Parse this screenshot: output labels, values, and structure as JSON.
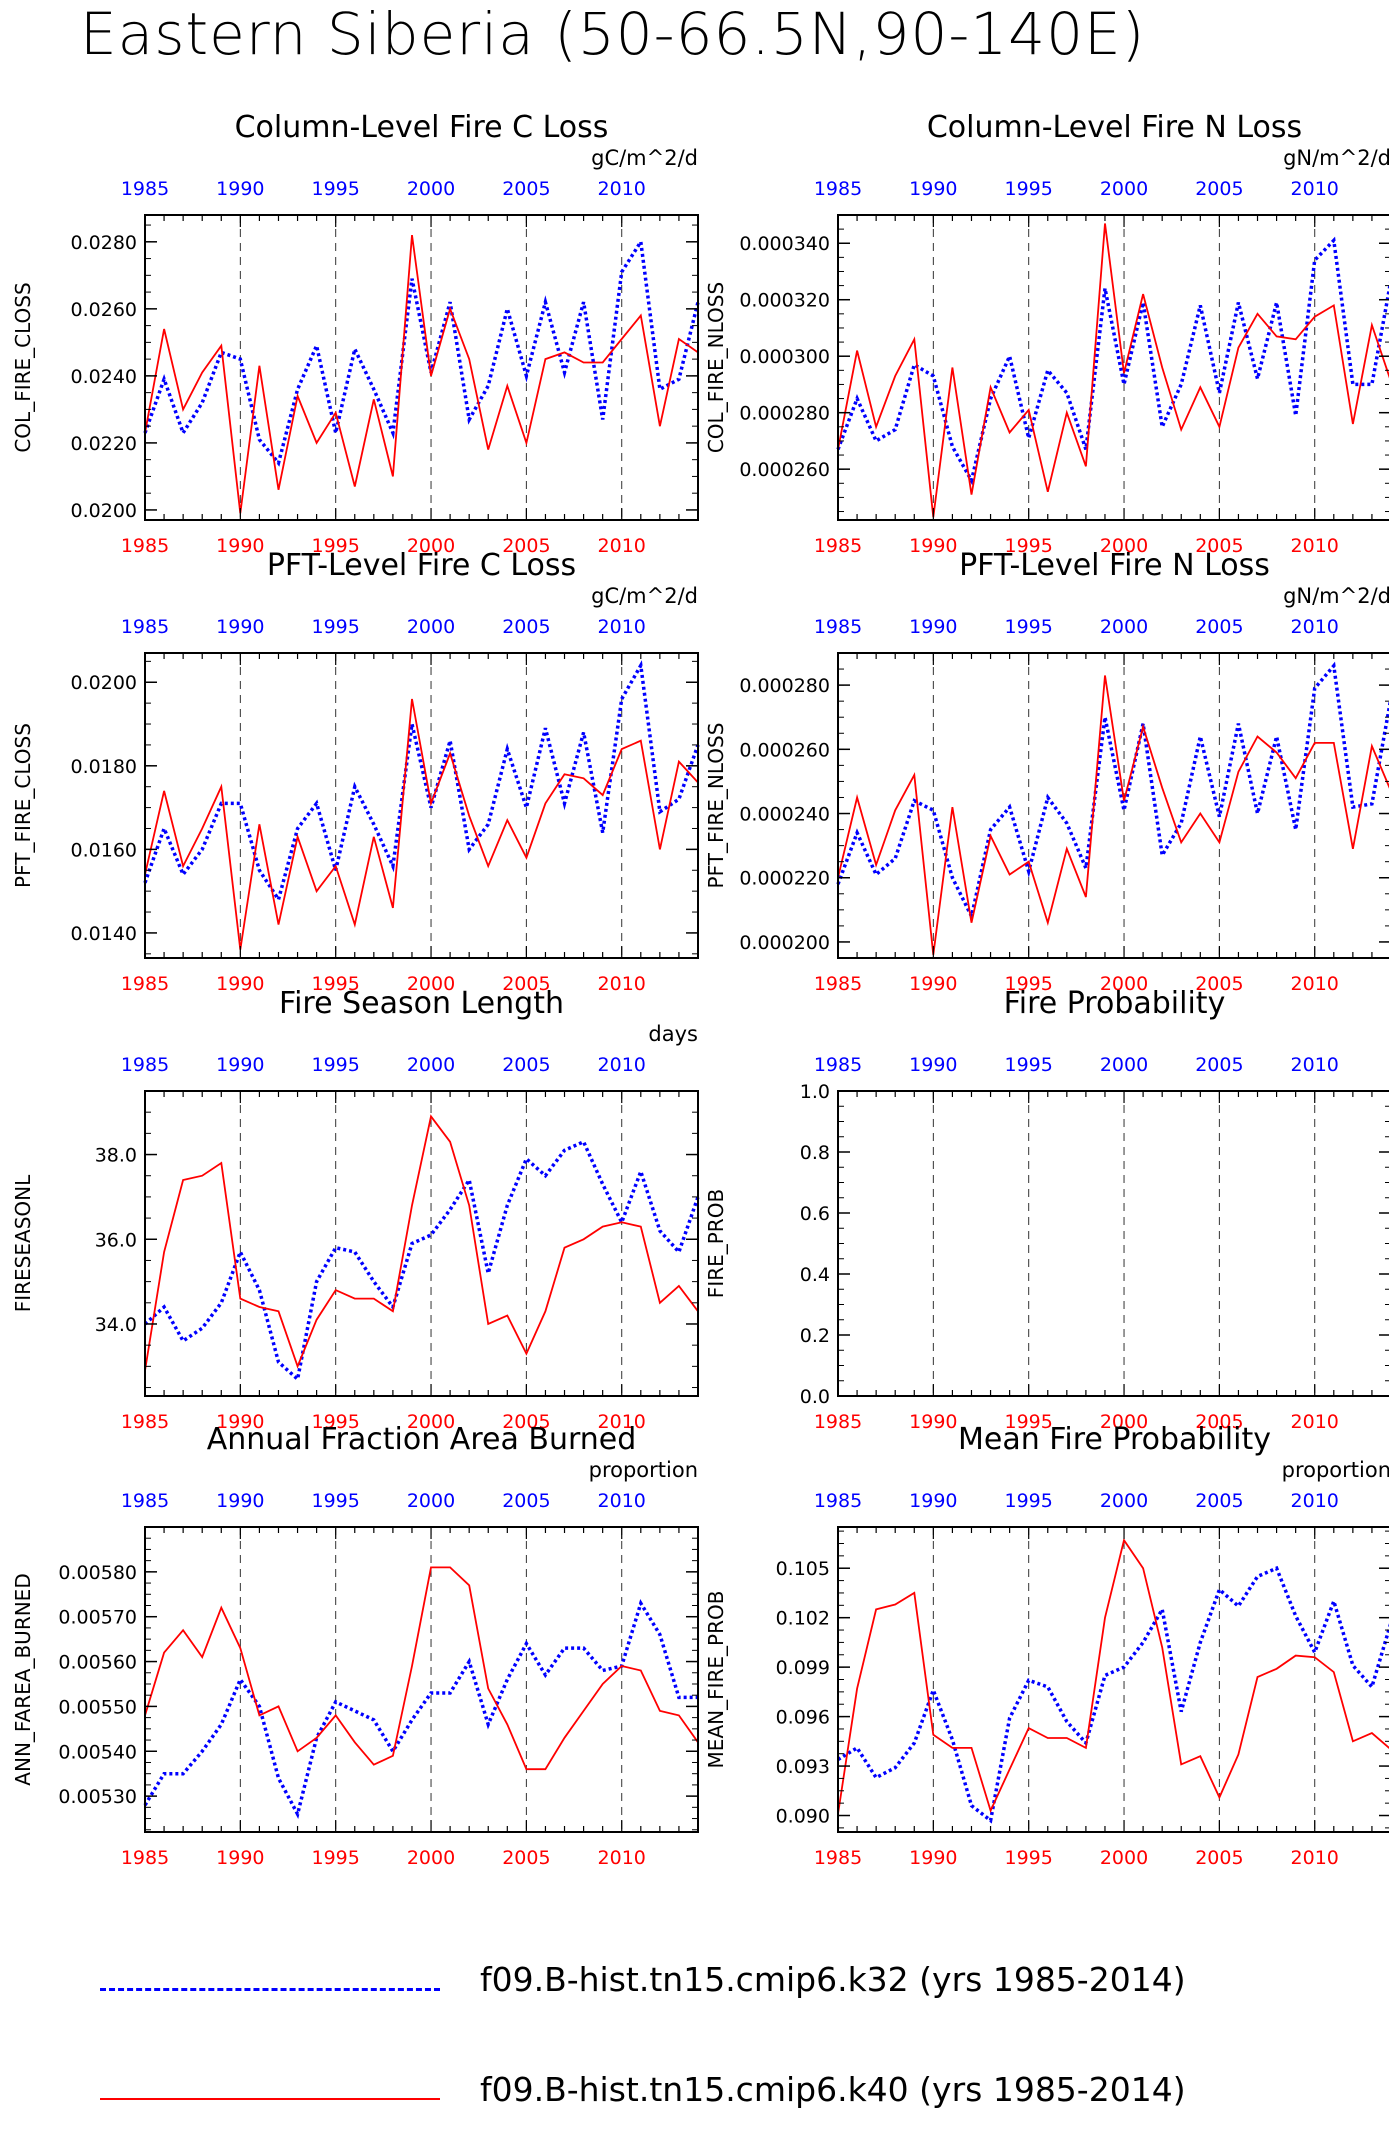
{
  "page_title": "Eastern Siberia (50-66.5N,90-140E)",
  "legend": [
    {
      "label": "f09.B-hist.tn15.cmip6.k32 (yrs 1985-2014)",
      "color": "#0000ff",
      "style": "dashed"
    },
    {
      "label": "f09.B-hist.tn15.cmip6.k40 (yrs 1985-2014)",
      "color": "#ff0000",
      "style": "solid"
    }
  ],
  "colors": {
    "blue": "#0000ff",
    "red": "#ff0000"
  },
  "chart_data": [
    {
      "type": "line",
      "title": "Column-Level Fire C Loss",
      "units": "gC/m^2/d",
      "ylabel": "COL_FIRE_CLOSS",
      "xlim": [
        1985,
        2014
      ],
      "ylim": [
        0.0197,
        0.0288
      ],
      "yticks": [
        0.02,
        0.022,
        0.024,
        0.026,
        0.028
      ],
      "ytick_labels": [
        "0.0200",
        "0.0220",
        "0.0240",
        "0.0260",
        "0.0280"
      ],
      "xticks": [
        1985,
        1990,
        1995,
        2000,
        2005,
        2010
      ],
      "x": [
        1985,
        1986,
        1987,
        1988,
        1989,
        1990,
        1991,
        1992,
        1993,
        1994,
        1995,
        1996,
        1997,
        1998,
        1999,
        2000,
        2001,
        2002,
        2003,
        2004,
        2005,
        2006,
        2007,
        2008,
        2009,
        2010,
        2011,
        2012,
        2013,
        2014
      ],
      "series": [
        {
          "color": "blue",
          "values": [
            0.0223,
            0.0239,
            0.0223,
            0.0232,
            0.0247,
            0.0245,
            0.0221,
            0.0214,
            0.0236,
            0.0249,
            0.0223,
            0.0248,
            0.0236,
            0.0223,
            0.0269,
            0.0241,
            0.0262,
            0.0227,
            0.0237,
            0.026,
            0.024,
            0.0262,
            0.0241,
            0.0262,
            0.0227,
            0.0271,
            0.028,
            0.0236,
            0.0239,
            0.0262
          ]
        },
        {
          "color": "red",
          "values": [
            0.0223,
            0.0254,
            0.023,
            0.0241,
            0.0249,
            0.0199,
            0.0243,
            0.0206,
            0.0234,
            0.022,
            0.0229,
            0.0207,
            0.0233,
            0.021,
            0.0282,
            0.024,
            0.026,
            0.0245,
            0.0218,
            0.0237,
            0.022,
            0.0245,
            0.0247,
            0.0244,
            0.0244,
            0.0251,
            0.0258,
            0.0225,
            0.0251,
            0.0247
          ]
        }
      ]
    },
    {
      "type": "line",
      "title": "Column-Level Fire N Loss",
      "units": "gN/m^2/d",
      "ylabel": "COL_FIRE_NLOSS",
      "xlim": [
        1985,
        2014
      ],
      "ylim": [
        0.000242,
        0.00035
      ],
      "yticks": [
        0.00026,
        0.00028,
        0.0003,
        0.00032,
        0.00034
      ],
      "ytick_labels": [
        "0.000260",
        "0.000280",
        "0.000300",
        "0.000320",
        "0.000340"
      ],
      "xticks": [
        1985,
        1990,
        1995,
        2000,
        2005,
        2010
      ],
      "x": [
        1985,
        1986,
        1987,
        1988,
        1989,
        1990,
        1991,
        1992,
        1993,
        1994,
        1995,
        1996,
        1997,
        1998,
        1999,
        2000,
        2001,
        2002,
        2003,
        2004,
        2005,
        2006,
        2007,
        2008,
        2009,
        2010,
        2011,
        2012,
        2013,
        2014
      ],
      "series": [
        {
          "color": "blue",
          "values": [
            0.000267,
            0.000285,
            0.00027,
            0.000274,
            0.000297,
            0.000293,
            0.000268,
            0.000256,
            0.000285,
            0.0003,
            0.000271,
            0.000295,
            0.000287,
            0.000267,
            0.000324,
            0.00029,
            0.000319,
            0.000275,
            0.00029,
            0.000318,
            0.000287,
            0.000319,
            0.000292,
            0.000319,
            0.000279,
            0.000334,
            0.000341,
            0.00029,
            0.00029,
            0.000327
          ]
        },
        {
          "color": "red",
          "values": [
            0.000267,
            0.000302,
            0.000275,
            0.000293,
            0.000306,
            0.000243,
            0.000296,
            0.000251,
            0.000289,
            0.000273,
            0.000281,
            0.000252,
            0.00028,
            0.000261,
            0.000347,
            0.000294,
            0.000322,
            0.000296,
            0.000274,
            0.000289,
            0.000275,
            0.000303,
            0.000315,
            0.000307,
            0.000306,
            0.000314,
            0.000318,
            0.000276,
            0.000311,
            0.000291
          ]
        }
      ]
    },
    {
      "type": "line",
      "title": "PFT-Level Fire C Loss",
      "units": "gC/m^2/d",
      "ylabel": "PFT_FIRE_CLOSS",
      "xlim": [
        1985,
        2014
      ],
      "ylim": [
        0.0134,
        0.0207
      ],
      "yticks": [
        0.014,
        0.016,
        0.018,
        0.02
      ],
      "ytick_labels": [
        "0.0140",
        "0.0160",
        "0.0180",
        "0.0200"
      ],
      "xticks": [
        1985,
        1990,
        1995,
        2000,
        2005,
        2010
      ],
      "x": [
        1985,
        1986,
        1987,
        1988,
        1989,
        1990,
        1991,
        1992,
        1993,
        1994,
        1995,
        1996,
        1997,
        1998,
        1999,
        2000,
        2001,
        2002,
        2003,
        2004,
        2005,
        2006,
        2007,
        2008,
        2009,
        2010,
        2011,
        2012,
        2013,
        2014
      ],
      "series": [
        {
          "color": "blue",
          "values": [
            0.0152,
            0.0165,
            0.0154,
            0.016,
            0.0171,
            0.0171,
            0.0155,
            0.0148,
            0.0165,
            0.0171,
            0.0155,
            0.0175,
            0.0166,
            0.0156,
            0.019,
            0.017,
            0.0186,
            0.016,
            0.0166,
            0.0184,
            0.017,
            0.0189,
            0.0171,
            0.0188,
            0.0164,
            0.0196,
            0.0204,
            0.0169,
            0.0172,
            0.0185
          ]
        },
        {
          "color": "red",
          "values": [
            0.0154,
            0.0174,
            0.0156,
            0.0165,
            0.0175,
            0.0136,
            0.0166,
            0.0142,
            0.0163,
            0.015,
            0.0156,
            0.0142,
            0.0163,
            0.0146,
            0.0196,
            0.0171,
            0.0183,
            0.0168,
            0.0156,
            0.0167,
            0.0158,
            0.0171,
            0.0178,
            0.0177,
            0.0173,
            0.0184,
            0.0186,
            0.016,
            0.0181,
            0.0176
          ]
        }
      ]
    },
    {
      "type": "line",
      "title": "PFT-Level Fire N Loss",
      "units": "gN/m^2/d",
      "ylabel": "PFT_FIRE_NLOSS",
      "xlim": [
        1985,
        2014
      ],
      "ylim": [
        0.000195,
        0.00029
      ],
      "yticks": [
        0.0002,
        0.00022,
        0.00024,
        0.00026,
        0.00028
      ],
      "ytick_labels": [
        "0.000200",
        "0.000220",
        "0.000240",
        "0.000260",
        "0.000280"
      ],
      "xticks": [
        1985,
        1990,
        1995,
        2000,
        2005,
        2010
      ],
      "x": [
        1985,
        1986,
        1987,
        1988,
        1989,
        1990,
        1991,
        1992,
        1993,
        1994,
        1995,
        1996,
        1997,
        1998,
        1999,
        2000,
        2001,
        2002,
        2003,
        2004,
        2005,
        2006,
        2007,
        2008,
        2009,
        2010,
        2011,
        2012,
        2013,
        2014
      ],
      "series": [
        {
          "color": "blue",
          "values": [
            0.000218,
            0.000234,
            0.000221,
            0.000226,
            0.000244,
            0.000241,
            0.00022,
            0.000208,
            0.000235,
            0.000242,
            0.000222,
            0.000245,
            0.000237,
            0.000223,
            0.00027,
            0.000241,
            0.000268,
            0.000227,
            0.000237,
            0.000264,
            0.000239,
            0.000268,
            0.00024,
            0.000264,
            0.000235,
            0.000279,
            0.000286,
            0.000242,
            0.000243,
            0.000276
          ]
        },
        {
          "color": "red",
          "values": [
            0.00022,
            0.000245,
            0.000224,
            0.000241,
            0.000252,
            0.000196,
            0.000242,
            0.000206,
            0.000233,
            0.000221,
            0.000225,
            0.000206,
            0.000229,
            0.000214,
            0.000283,
            0.000244,
            0.000267,
            0.000248,
            0.000231,
            0.00024,
            0.000231,
            0.000253,
            0.000264,
            0.000259,
            0.000251,
            0.000262,
            0.000262,
            0.000229,
            0.000261,
            0.000247
          ]
        }
      ]
    },
    {
      "type": "line",
      "title": "Fire Season Length",
      "units": "days",
      "ylabel": "FIRESEASONL",
      "xlim": [
        1985,
        2014
      ],
      "ylim": [
        32.3,
        39.5
      ],
      "yticks": [
        34.0,
        36.0,
        38.0
      ],
      "ytick_labels": [
        "34.0",
        "36.0",
        "38.0"
      ],
      "xticks": [
        1985,
        1990,
        1995,
        2000,
        2005,
        2010
      ],
      "x": [
        1985,
        1986,
        1987,
        1988,
        1989,
        1990,
        1991,
        1992,
        1993,
        1994,
        1995,
        1996,
        1997,
        1998,
        1999,
        2000,
        2001,
        2002,
        2003,
        2004,
        2005,
        2006,
        2007,
        2008,
        2009,
        2010,
        2011,
        2012,
        2013,
        2014
      ],
      "series": [
        {
          "color": "blue",
          "values": [
            34.0,
            34.4,
            33.6,
            33.9,
            34.5,
            35.7,
            34.8,
            33.1,
            32.7,
            35.0,
            35.8,
            35.7,
            35.0,
            34.4,
            35.9,
            36.1,
            36.7,
            37.4,
            35.2,
            36.8,
            37.9,
            37.5,
            38.1,
            38.3,
            37.3,
            36.4,
            37.6,
            36.2,
            35.7,
            37.0
          ]
        },
        {
          "color": "red",
          "values": [
            32.9,
            35.7,
            37.4,
            37.5,
            37.8,
            34.6,
            34.4,
            34.3,
            33.0,
            34.1,
            34.8,
            34.6,
            34.6,
            34.3,
            36.8,
            38.9,
            38.3,
            36.8,
            34.0,
            34.2,
            33.3,
            34.3,
            35.8,
            36.0,
            36.3,
            36.4,
            36.3,
            34.5,
            34.9,
            34.3
          ]
        }
      ]
    },
    {
      "type": "line",
      "title": "Fire Probability",
      "units": "",
      "ylabel": "FIRE_PROB",
      "xlim": [
        1985,
        2014
      ],
      "ylim": [
        0.0,
        1.0
      ],
      "yticks": [
        0.0,
        0.2,
        0.4,
        0.6,
        0.8,
        1.0
      ],
      "ytick_labels": [
        "0.0",
        "0.2",
        "0.4",
        "0.6",
        "0.8",
        "1.0"
      ],
      "xticks": [
        1985,
        1990,
        1995,
        2000,
        2005,
        2010
      ],
      "x": [],
      "series": []
    },
    {
      "type": "line",
      "title": "Annual Fraction Area Burned",
      "units": "proportion",
      "ylabel": "ANN_FAREA_BURNED",
      "xlim": [
        1985,
        2014
      ],
      "ylim": [
        0.00522,
        0.0059
      ],
      "yticks": [
        0.0053,
        0.0054,
        0.0055,
        0.0056,
        0.0057,
        0.0058
      ],
      "ytick_labels": [
        "0.00530",
        "0.00540",
        "0.00550",
        "0.00560",
        "0.00570",
        "0.00580"
      ],
      "xticks": [
        1985,
        1990,
        1995,
        2000,
        2005,
        2010
      ],
      "x": [
        1985,
        1986,
        1987,
        1988,
        1989,
        1990,
        1991,
        1992,
        1993,
        1994,
        1995,
        1996,
        1997,
        1998,
        1999,
        2000,
        2001,
        2002,
        2003,
        2004,
        2005,
        2006,
        2007,
        2008,
        2009,
        2010,
        2011,
        2012,
        2013,
        2014
      ],
      "series": [
        {
          "color": "blue",
          "values": [
            0.00528,
            0.00535,
            0.00535,
            0.0054,
            0.00546,
            0.00556,
            0.0055,
            0.00534,
            0.00526,
            0.00543,
            0.00551,
            0.00549,
            0.00547,
            0.0054,
            0.00547,
            0.00553,
            0.00553,
            0.0056,
            0.00546,
            0.00556,
            0.00564,
            0.00557,
            0.00563,
            0.00563,
            0.00558,
            0.00559,
            0.00573,
            0.00566,
            0.00552,
            0.00552
          ]
        },
        {
          "color": "red",
          "values": [
            0.00548,
            0.00562,
            0.00567,
            0.00561,
            0.00572,
            0.00563,
            0.00548,
            0.0055,
            0.0054,
            0.00543,
            0.00548,
            0.00542,
            0.00537,
            0.00539,
            0.00559,
            0.00581,
            0.00581,
            0.00577,
            0.00554,
            0.00546,
            0.00536,
            0.00536,
            0.00543,
            0.00549,
            0.00555,
            0.00559,
            0.00558,
            0.00549,
            0.00548,
            0.00542
          ]
        }
      ]
    },
    {
      "type": "line",
      "title": "Mean Fire Probability",
      "units": "proportion",
      "ylabel": "MEAN_FIRE_PROB",
      "xlim": [
        1985,
        2014
      ],
      "ylim": [
        0.089,
        0.1075
      ],
      "yticks": [
        0.09,
        0.093,
        0.096,
        0.099,
        0.102,
        0.105
      ],
      "ytick_labels": [
        "0.090",
        "0.093",
        "0.096",
        "0.099",
        "0.102",
        "0.105"
      ],
      "xticks": [
        1985,
        1990,
        1995,
        2000,
        2005,
        2010
      ],
      "x": [
        1985,
        1986,
        1987,
        1988,
        1989,
        1990,
        1991,
        1992,
        1993,
        1994,
        1995,
        1996,
        1997,
        1998,
        1999,
        2000,
        2001,
        2002,
        2003,
        2004,
        2005,
        2006,
        2007,
        2008,
        2009,
        2010,
        2011,
        2012,
        2013,
        2014
      ],
      "series": [
        {
          "color": "blue",
          "values": [
            0.0934,
            0.0941,
            0.0923,
            0.0929,
            0.0944,
            0.0976,
            0.0946,
            0.0906,
            0.0897,
            0.0959,
            0.0982,
            0.0978,
            0.0957,
            0.0944,
            0.0985,
            0.099,
            0.1005,
            0.1025,
            0.0963,
            0.1005,
            0.1037,
            0.1027,
            0.1045,
            0.105,
            0.1021,
            0.0999,
            0.103,
            0.0991,
            0.0978,
            0.1017
          ]
        },
        {
          "color": "red",
          "values": [
            0.0901,
            0.0977,
            0.1025,
            0.1028,
            0.1035,
            0.0949,
            0.0941,
            0.0941,
            0.0903,
            0.0928,
            0.0953,
            0.0947,
            0.0947,
            0.0941,
            0.102,
            0.1067,
            0.105,
            0.1002,
            0.0931,
            0.0936,
            0.0911,
            0.0937,
            0.0984,
            0.0989,
            0.0997,
            0.0996,
            0.0987,
            0.0945,
            0.095,
            0.094
          ]
        }
      ]
    }
  ]
}
